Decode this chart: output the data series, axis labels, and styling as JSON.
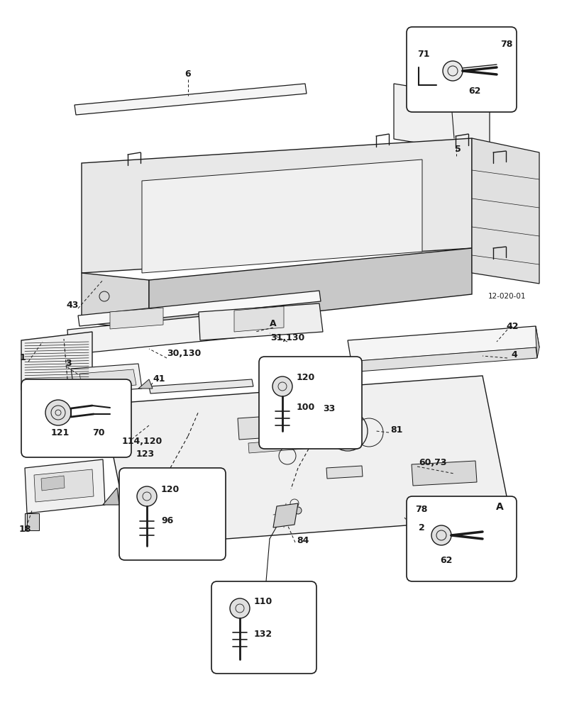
{
  "bg_color": "#ffffff",
  "lc": "#1a1a1a",
  "fig_width": 7.92,
  "fig_height": 10.0,
  "dpi": 100
}
